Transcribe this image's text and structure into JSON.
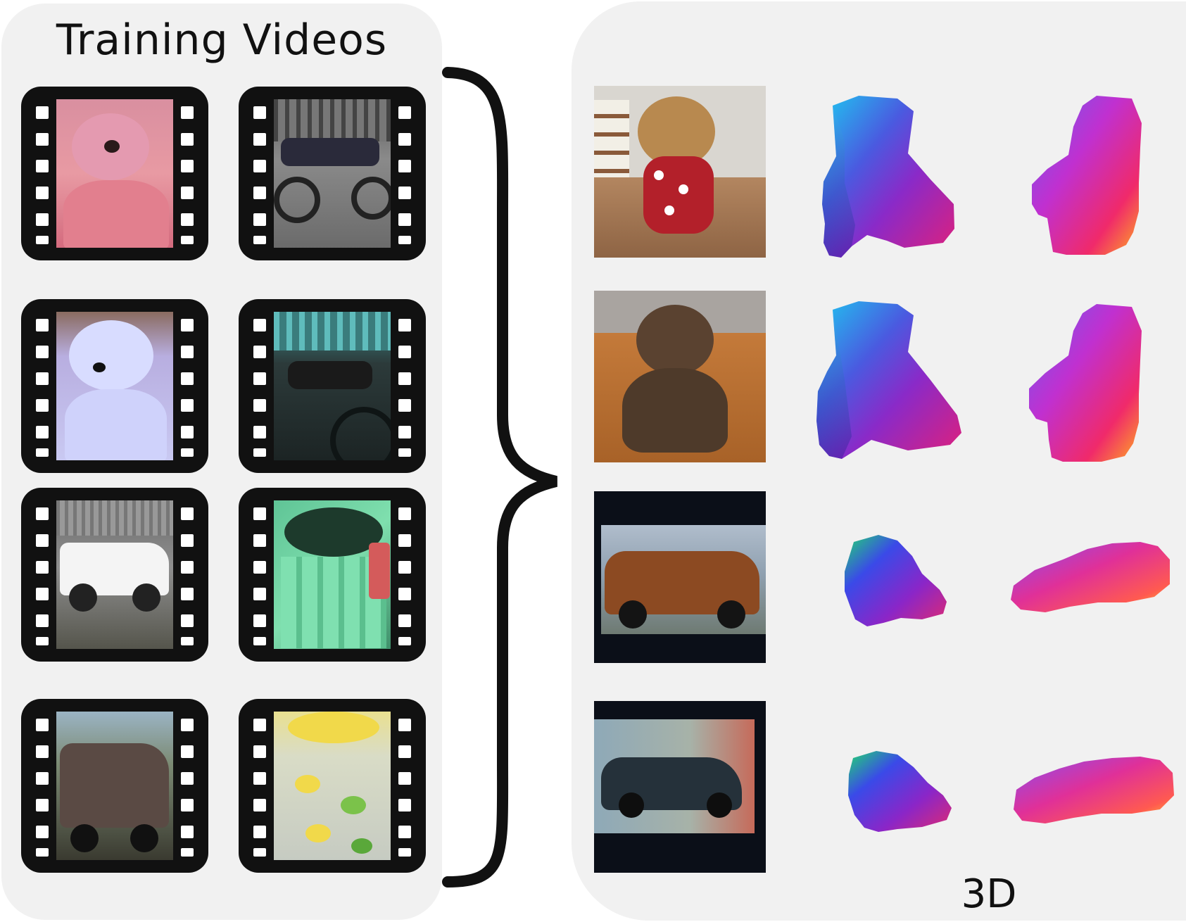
{
  "left_panel": {
    "title": "Training Videos"
  },
  "right_panel": {
    "label": "3D"
  },
  "colors": {
    "panel_background": "#f1f1f1",
    "film_strip": "#111111",
    "brace": "#111111"
  },
  "icons": {
    "film_reel": "film-strip-icon",
    "grouping": "curly-brace-icon"
  },
  "training_videos": [
    {
      "subject": "pink-teddy-bear",
      "column": 1,
      "row": 1
    },
    {
      "subject": "motorcycle",
      "column": 2,
      "row": 1
    },
    {
      "subject": "white-teddy-bear",
      "column": 1,
      "row": 2
    },
    {
      "subject": "motorcycle",
      "column": 2,
      "row": 2
    },
    {
      "subject": "white-pickup-truck",
      "column": 1,
      "row": 3
    },
    {
      "subject": "green-mug",
      "column": 2,
      "row": 3
    },
    {
      "subject": "brown-van",
      "column": 1,
      "row": 4
    },
    {
      "subject": "lemon-tumbler",
      "column": 2,
      "row": 4
    }
  ],
  "outputs": [
    {
      "subject": "teddy-bear-with-pajamas",
      "views": [
        "front-view",
        "side-view"
      ]
    },
    {
      "subject": "brown-teddy-bear",
      "views": [
        "front-view",
        "side-view"
      ]
    },
    {
      "subject": "brown-suv",
      "views": [
        "front-view",
        "side-view"
      ]
    },
    {
      "subject": "dark-sedan",
      "views": [
        "front-view",
        "side-view"
      ]
    }
  ]
}
